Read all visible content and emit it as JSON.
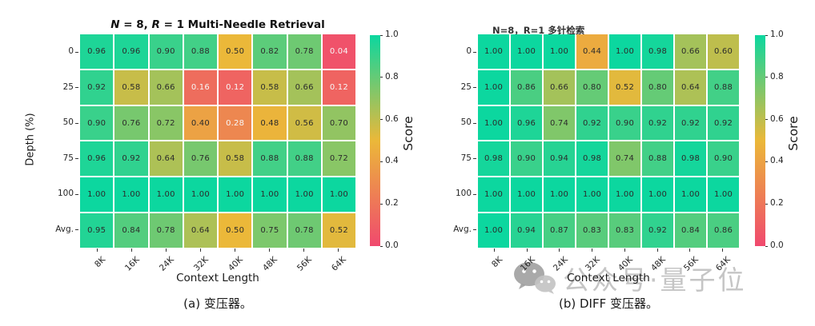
{
  "colormap": {
    "stops": [
      "#F0496E",
      "#EBB839",
      "#0CD79F"
    ],
    "text_dark": "#2b2b2b",
    "text_light": "#f7f7f7",
    "light_text_below": 0.3
  },
  "watermark": {
    "icon": "wechat-icon",
    "text": "公众号·量子位"
  },
  "chart_data": [
    {
      "type": "heatmap",
      "title": "N = 8, R = 1 Multi-Needle Retrieval",
      "title_segments": [
        {
          "text": "N",
          "italic": true
        },
        {
          "text": " = 8, ",
          "italic": false
        },
        {
          "text": "R",
          "italic": true
        },
        {
          "text": " = 1 Multi-Needle Retrieval",
          "italic": false
        }
      ],
      "xlabel": "Context Length",
      "ylabel": "Depth (%)",
      "caption": "(a) 变压器。",
      "x_ticks": [
        "8K",
        "16K",
        "24K",
        "32K",
        "40K",
        "48K",
        "56K",
        "64K"
      ],
      "y_ticks": [
        "0",
        "25",
        "50",
        "75",
        "100",
        "Avg."
      ],
      "values": [
        [
          0.96,
          0.96,
          0.9,
          0.88,
          0.5,
          0.82,
          0.78,
          0.04
        ],
        [
          0.92,
          0.58,
          0.66,
          0.16,
          0.12,
          0.58,
          0.66,
          0.12
        ],
        [
          0.9,
          0.76,
          0.72,
          0.4,
          0.28,
          0.48,
          0.56,
          0.7
        ],
        [
          0.96,
          0.92,
          0.64,
          0.76,
          0.58,
          0.88,
          0.88,
          0.72
        ],
        [
          1.0,
          1.0,
          1.0,
          1.0,
          1.0,
          1.0,
          1.0,
          1.0
        ],
        [
          0.95,
          0.84,
          0.78,
          0.64,
          0.5,
          0.75,
          0.78,
          0.52
        ]
      ],
      "value_range": [
        0,
        1
      ],
      "colorbar": {
        "label": "Score",
        "ticks": [
          "1.0",
          "0.8",
          "0.6",
          "0.4",
          "0.2",
          "0.0"
        ]
      }
    },
    {
      "type": "heatmap",
      "title": "N=8，R=1 多针检索",
      "title_segments": [
        {
          "text": "N=8，R=1 多针检索",
          "italic": false
        }
      ],
      "xlabel": "Context Length",
      "ylabel": "",
      "caption": "(b) DIFF 变压器。",
      "x_ticks": [
        "8K",
        "16K",
        "24K",
        "32K",
        "40K",
        "48K",
        "56K",
        "64K"
      ],
      "y_ticks": [
        "0",
        "25",
        "50",
        "75",
        "100",
        "Avg."
      ],
      "values": [
        [
          1.0,
          1.0,
          1.0,
          0.44,
          1.0,
          0.98,
          0.66,
          0.6
        ],
        [
          1.0,
          0.86,
          0.66,
          0.8,
          0.52,
          0.8,
          0.64,
          0.88
        ],
        [
          1.0,
          0.96,
          0.74,
          0.92,
          0.9,
          0.92,
          0.92,
          0.92
        ],
        [
          0.98,
          0.9,
          0.94,
          0.98,
          0.74,
          0.88,
          0.98,
          0.9
        ],
        [
          1.0,
          1.0,
          1.0,
          1.0,
          1.0,
          1.0,
          1.0,
          1.0
        ],
        [
          1.0,
          0.94,
          0.87,
          0.83,
          0.83,
          0.92,
          0.84,
          0.86
        ]
      ],
      "value_range": [
        0,
        1
      ],
      "colorbar": {
        "label": "Score",
        "ticks": [
          "1.0",
          "0.8",
          "0.6",
          "0.4",
          "0.2",
          "0.0"
        ]
      }
    }
  ]
}
